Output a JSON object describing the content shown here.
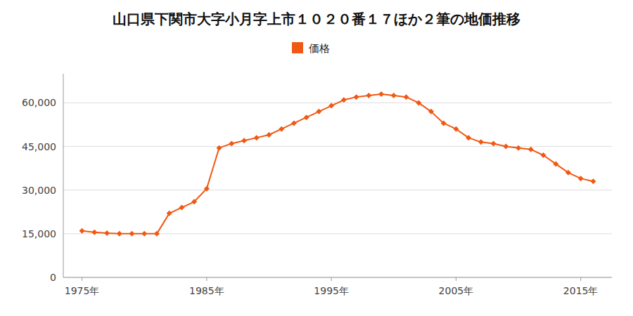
{
  "chart_data": {
    "type": "line",
    "title": "山口県下関市大字小月字上市１０２０番１７ほか２筆の地価推移",
    "x": [
      1975,
      1976,
      1977,
      1978,
      1979,
      1980,
      1981,
      1982,
      1983,
      1984,
      1985,
      1986,
      1987,
      1988,
      1989,
      1990,
      1991,
      1992,
      1993,
      1994,
      1995,
      1996,
      1997,
      1998,
      1999,
      2000,
      2001,
      2002,
      2003,
      2004,
      2005,
      2006,
      2007,
      2008,
      2009,
      2010,
      2011,
      2012,
      2013,
      2014,
      2015,
      2016
    ],
    "series": [
      {
        "name": "価格",
        "color": "#f05914",
        "marker": "diamond",
        "values": [
          16000,
          15500,
          15200,
          15000,
          15000,
          15000,
          15000,
          22000,
          24000,
          26000,
          30500,
          44500,
          46000,
          47000,
          48000,
          49000,
          51000,
          53000,
          55000,
          57000,
          59000,
          61000,
          62000,
          62500,
          63000,
          62500,
          62000,
          60000,
          57000,
          53000,
          51000,
          48000,
          46500,
          46000,
          45000,
          44500,
          44000,
          42000,
          39000,
          36000,
          34000,
          33000
        ]
      }
    ],
    "xlim": [
      1973.5,
      2017.5
    ],
    "xticks": [
      {
        "value": 1975,
        "label": "1975年"
      },
      {
        "value": 1985,
        "label": "1985年"
      },
      {
        "value": 1995,
        "label": "1995年"
      },
      {
        "value": 2005,
        "label": "2005年"
      },
      {
        "value": 2015,
        "label": "2015年"
      }
    ],
    "ylim": [
      0,
      70000
    ],
    "yticks": [
      0,
      {
        "value": 15000,
        "label": "15,000"
      },
      {
        "value": 30000,
        "label": "30,000"
      },
      {
        "value": 45000,
        "label": "45,000"
      },
      {
        "value": 60000,
        "label": "60,000"
      }
    ],
    "grid": true,
    "legend": "top"
  }
}
